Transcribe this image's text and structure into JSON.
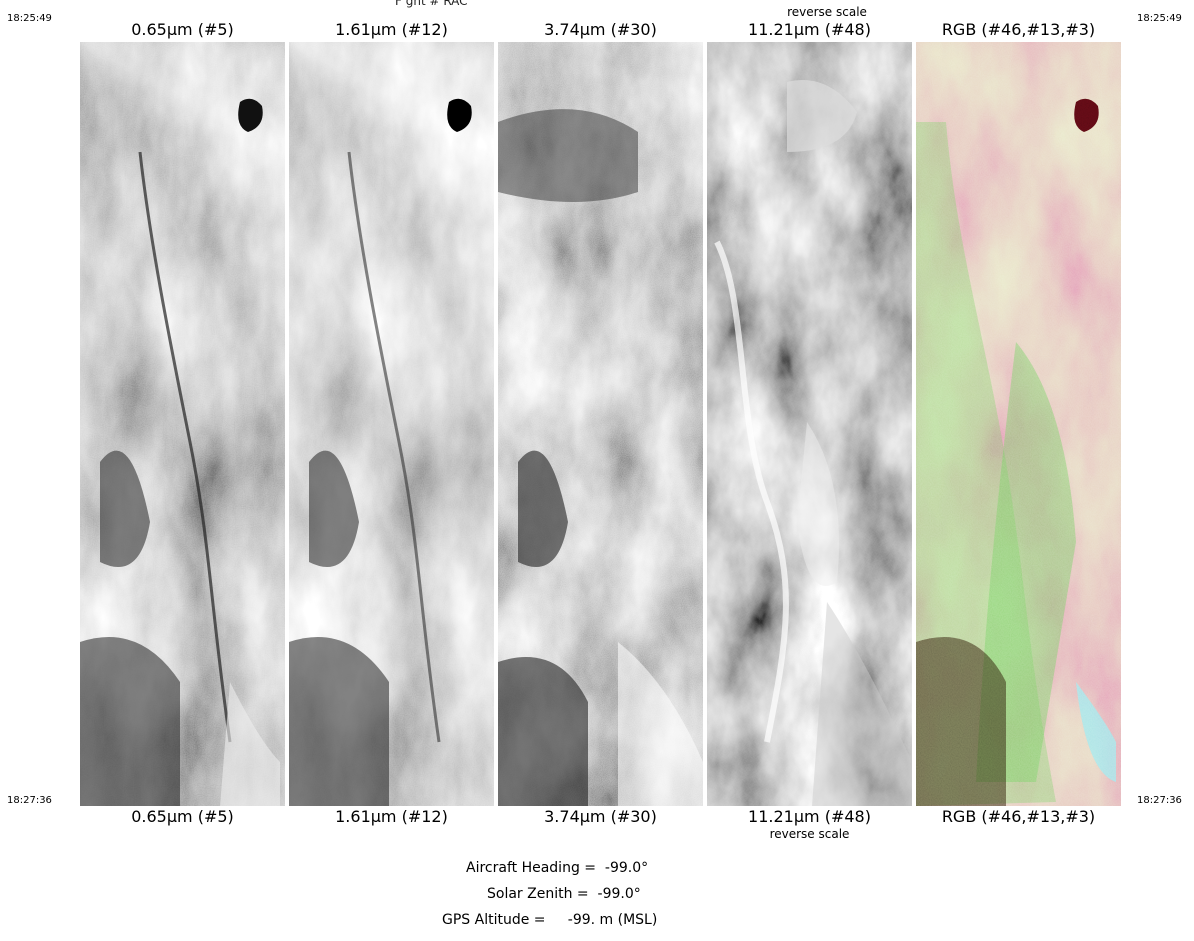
{
  "header": {
    "title_partial": "F ght #    RAC    ",
    "top_subnote": "reverse scale"
  },
  "timestamps": {
    "start": "18:25:49",
    "end": "18:27:36"
  },
  "panels": [
    {
      "top_label": "0.65μm (#5)",
      "bottom_label": "0.65μm (#5)",
      "note": ""
    },
    {
      "top_label": "1.61μm (#12)",
      "bottom_label": "1.61μm (#12)",
      "note": ""
    },
    {
      "top_label": "3.74μm (#30)",
      "bottom_label": "3.74μm (#30)",
      "note": ""
    },
    {
      "top_label": "11.21μm (#48)",
      "bottom_label": "11.21μm (#48)",
      "note": "reverse scale"
    },
    {
      "top_label": "RGB (#46,#13,#3)",
      "bottom_label": "RGB (#46,#13,#3)",
      "note": ""
    }
  ],
  "info": {
    "heading": "Aircraft Heading =  -99.0°",
    "zenith": "Solar Zenith =  -99.0°",
    "altitude": "GPS Altitude =     -99. m (MSL)"
  },
  "colors": {
    "rgb_vegetation": "#6fd15a",
    "rgb_soil": "#d87a92",
    "rgb_water": "#5a0a14"
  }
}
